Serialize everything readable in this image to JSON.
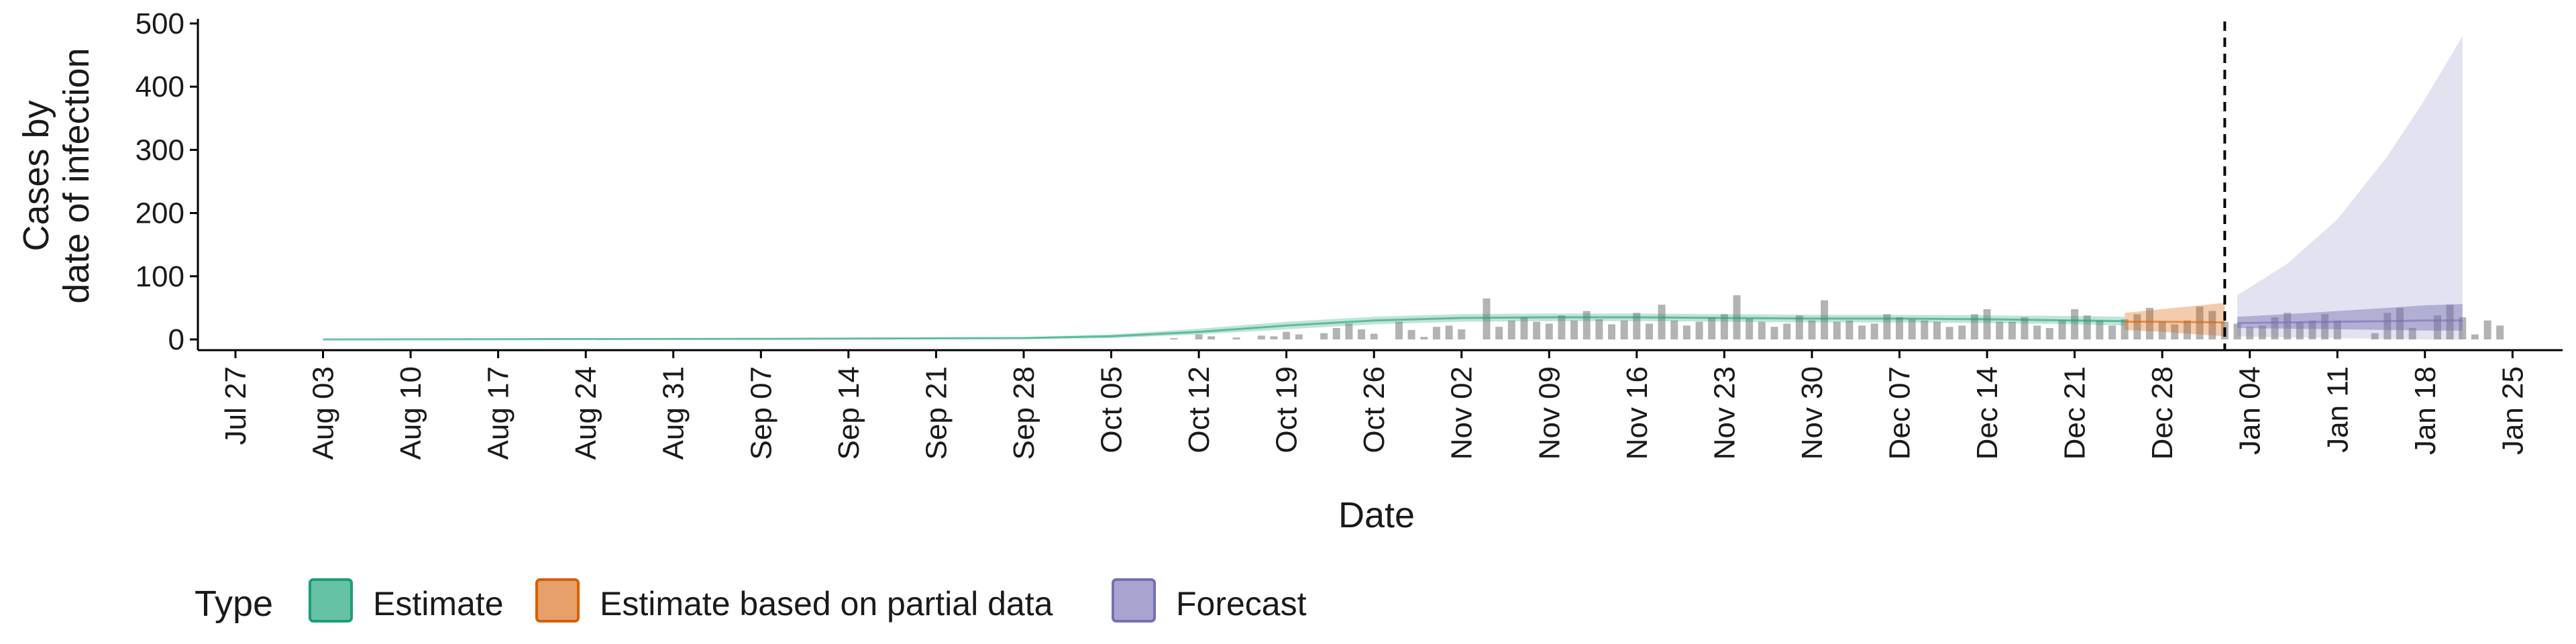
{
  "chart_data": {
    "type": "area",
    "xlabel": "Date",
    "ylabel_lines": [
      "Cases by",
      "date of infection"
    ],
    "ylim": [
      0,
      500
    ],
    "yticks": [
      0,
      100,
      200,
      300,
      400,
      500
    ],
    "x_range": [
      "2020-07-24",
      "2021-01-29"
    ],
    "xticks": [
      {
        "date": "2020-07-27",
        "label": "Jul 27"
      },
      {
        "date": "2020-08-03",
        "label": "Aug 03"
      },
      {
        "date": "2020-08-10",
        "label": "Aug 10"
      },
      {
        "date": "2020-08-17",
        "label": "Aug 17"
      },
      {
        "date": "2020-08-24",
        "label": "Aug 24"
      },
      {
        "date": "2020-08-31",
        "label": "Aug 31"
      },
      {
        "date": "2020-09-07",
        "label": "Sep 07"
      },
      {
        "date": "2020-09-14",
        "label": "Sep 14"
      },
      {
        "date": "2020-09-21",
        "label": "Sep 21"
      },
      {
        "date": "2020-09-28",
        "label": "Sep 28"
      },
      {
        "date": "2020-10-05",
        "label": "Oct 05"
      },
      {
        "date": "2020-10-12",
        "label": "Oct 12"
      },
      {
        "date": "2020-10-19",
        "label": "Oct 19"
      },
      {
        "date": "2020-10-26",
        "label": "Oct 26"
      },
      {
        "date": "2020-11-02",
        "label": "Nov 02"
      },
      {
        "date": "2020-11-09",
        "label": "Nov 09"
      },
      {
        "date": "2020-11-16",
        "label": "Nov 16"
      },
      {
        "date": "2020-11-23",
        "label": "Nov 23"
      },
      {
        "date": "2020-11-30",
        "label": "Nov 30"
      },
      {
        "date": "2020-12-07",
        "label": "Dec 07"
      },
      {
        "date": "2020-12-14",
        "label": "Dec 14"
      },
      {
        "date": "2020-12-21",
        "label": "Dec 21"
      },
      {
        "date": "2020-12-28",
        "label": "Dec 28"
      },
      {
        "date": "2021-01-04",
        "label": "Jan 04"
      },
      {
        "date": "2021-01-11",
        "label": "Jan 11"
      },
      {
        "date": "2021-01-18",
        "label": "Jan 18"
      },
      {
        "date": "2021-01-25",
        "label": "Jan 25"
      }
    ],
    "forecast_start": "2021-01-02",
    "grid": false,
    "legend": {
      "position": "bottom-left",
      "title": "Type",
      "entries": [
        {
          "label": "Estimate",
          "fill": "#66c2a5",
          "stroke": "#1b9e77"
        },
        {
          "label": "Estimate based on partial data",
          "fill": "#e8a06a",
          "stroke": "#d95f02"
        },
        {
          "label": "Forecast",
          "fill": "#a9a3d0",
          "stroke": "#7570b3"
        }
      ]
    },
    "colors": {
      "estimate": "#1b9e77",
      "partial": "#d95f02",
      "forecast": "#7570b3",
      "observed_bars": "#b3b3b3",
      "forecast_line": "#000000"
    },
    "series": [
      {
        "name": "Estimate",
        "kind": "band",
        "x": [
          "2020-08-03",
          "2020-09-07",
          "2020-09-28",
          "2020-10-05",
          "2020-10-12",
          "2020-10-19",
          "2020-10-26",
          "2020-11-02",
          "2020-11-09",
          "2020-11-16",
          "2020-11-23",
          "2020-11-30",
          "2020-12-07",
          "2020-12-14",
          "2020-12-21",
          "2020-12-25"
        ],
        "lower": [
          0,
          0,
          1,
          2,
          8,
          16,
          24,
          28,
          29,
          29,
          28,
          27,
          27,
          26,
          24,
          22
        ],
        "median": [
          0,
          1,
          2,
          5,
          12,
          22,
          30,
          34,
          35,
          35,
          34,
          33,
          33,
          32,
          30,
          29
        ],
        "upper": [
          1,
          2,
          4,
          8,
          17,
          28,
          36,
          40,
          41,
          41,
          40,
          39,
          39,
          38,
          37,
          36
        ]
      },
      {
        "name": "Estimate based on partial data",
        "kind": "band",
        "x": [
          "2020-12-25",
          "2020-12-28",
          "2021-01-02"
        ],
        "lower": [
          15,
          12,
          5
        ],
        "median": [
          28,
          28,
          27
        ],
        "upper": [
          42,
          48,
          58
        ]
      },
      {
        "name": "Forecast",
        "kind": "band",
        "x": [
          "2021-01-03",
          "2021-01-07",
          "2021-01-11",
          "2021-01-15",
          "2021-01-18",
          "2021-01-21"
        ],
        "lower": [
          5,
          3,
          2,
          1,
          0,
          0
        ],
        "inner_lower": [
          18,
          17,
          16,
          15,
          14,
          14
        ],
        "median": [
          26,
          27,
          28,
          29,
          30,
          30
        ],
        "inner_upper": [
          36,
          40,
          45,
          50,
          54,
          56
        ],
        "upper": [
          70,
          120,
          190,
          290,
          380,
          480
        ]
      }
    ],
    "observed_cases": {
      "start": "2020-08-03",
      "values": [
        0,
        0,
        0,
        0,
        0,
        0,
        0,
        0,
        0,
        0,
        0,
        0,
        0,
        0,
        0,
        0,
        0,
        0,
        0,
        0,
        0,
        0,
        0,
        0,
        0,
        0,
        0,
        0,
        0,
        0,
        0,
        0,
        0,
        0,
        0,
        0,
        0,
        0,
        0,
        0,
        0,
        0,
        0,
        0,
        0,
        0,
        0,
        0,
        0,
        0,
        0,
        0,
        0,
        0,
        0,
        0,
        0,
        0,
        0,
        0,
        0,
        0,
        0,
        0,
        0,
        0,
        0,
        0,
        2,
        0,
        8,
        5,
        0,
        3,
        0,
        6,
        5,
        12,
        8,
        0,
        10,
        18,
        25,
        16,
        9,
        0,
        28,
        15,
        4,
        20,
        22,
        16,
        0,
        65,
        20,
        30,
        35,
        28,
        25,
        38,
        30,
        45,
        32,
        24,
        30,
        42,
        25,
        55,
        30,
        22,
        28,
        35,
        40,
        70,
        33,
        28,
        20,
        25,
        38,
        30,
        62,
        28,
        30,
        22,
        25,
        40,
        35,
        32,
        30,
        28,
        20,
        22,
        40,
        48,
        28,
        28,
        35,
        22,
        18,
        30,
        48,
        38,
        30,
        22,
        32,
        40,
        50,
        28,
        24,
        30,
        52,
        45,
        28,
        25,
        20,
        22,
        35,
        42,
        28,
        30,
        40,
        30,
        0,
        0,
        10,
        42,
        50,
        18,
        0,
        38,
        55,
        35,
        8,
        30,
        22
      ]
    }
  }
}
